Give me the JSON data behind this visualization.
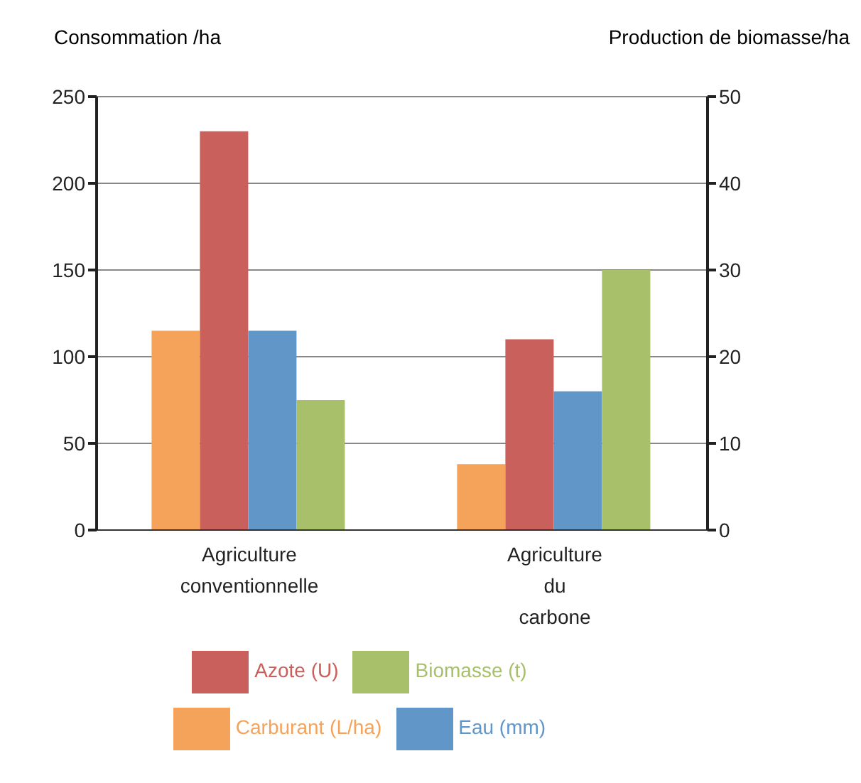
{
  "chart_data": {
    "type": "bar",
    "ylabel": "Consommation /ha",
    "y2label": "Production de biomasse/ha",
    "categories": [
      "Agriculture conventionnelle",
      "Agriculture du carbone"
    ],
    "series": [
      {
        "name": "Carburant (L/ha)",
        "color": "#f5a35a",
        "values": [
          115,
          38
        ]
      },
      {
        "name": "Azote (U)",
        "color": "#c9605c",
        "values": [
          230,
          110
        ]
      },
      {
        "name": "Eau (mm)",
        "color": "#6096c8",
        "values": [
          115,
          80
        ]
      },
      {
        "name": "Biomasse (t)",
        "color": "#a9c06a",
        "values": [
          15,
          30
        ],
        "axis": "y2"
      }
    ],
    "ylim": [
      0,
      250
    ],
    "yticks": [
      0,
      50,
      100,
      150,
      200,
      250
    ],
    "y2lim": [
      0,
      50
    ],
    "y2ticks": [
      0,
      10,
      20,
      30,
      40,
      50
    ],
    "grid": "y",
    "legend": "bottom"
  }
}
